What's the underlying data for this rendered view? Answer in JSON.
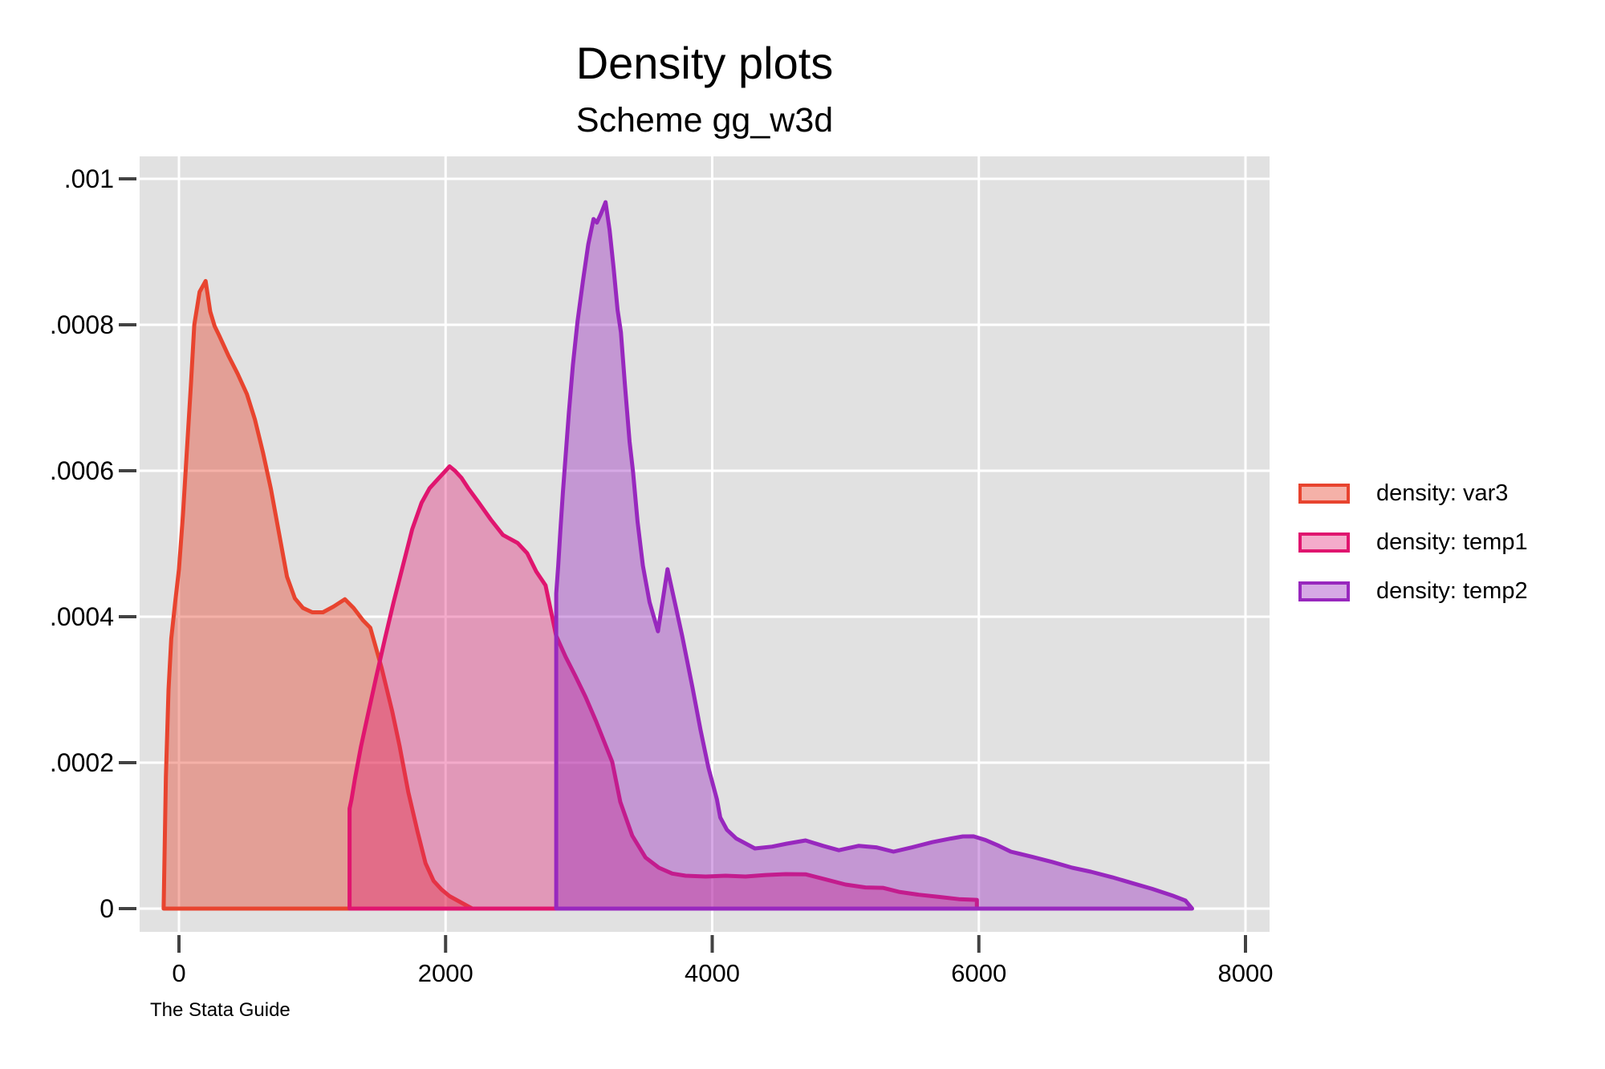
{
  "title": "Density plots",
  "subtitle": "Scheme gg_w3d",
  "footer": "The Stata Guide",
  "colors": {
    "plot_bg": "#e1e1e1",
    "gridline": "#ffffff",
    "tick": "#424242",
    "text": "#000000",
    "var3_stroke": "#e8442f",
    "var3_fill": "rgba(232,68,47,0.42)",
    "temp1_stroke": "#e0156f",
    "temp1_fill": "rgba(224,21,111,0.36)",
    "temp2_stroke": "#9828be",
    "temp2_fill": "rgba(152,40,190,0.40)"
  },
  "legend": {
    "items": [
      {
        "label": "density: var3",
        "series": "var3"
      },
      {
        "label": "density: temp1",
        "series": "temp1"
      },
      {
        "label": "density: temp2",
        "series": "temp2"
      }
    ]
  },
  "chart_data": {
    "type": "area",
    "title": "Density plots",
    "subtitle": "Scheme gg_w3d",
    "xlabel": "",
    "ylabel": "",
    "xlim": [
      -200,
      8400
    ],
    "ylim": [
      0,
      0.00104
    ],
    "grid": true,
    "legend_position": "right-outside",
    "x_ticks": {
      "values": [
        0,
        2000,
        4000,
        6000,
        8000
      ],
      "labels": [
        "0",
        "2000",
        "4000",
        "6000",
        "8000"
      ]
    },
    "y_ticks": {
      "values": [
        0,
        0.0002,
        0.0004,
        0.0006,
        0.0008,
        0.001
      ],
      "labels": [
        "0",
        ".0002",
        ".0004",
        ".0006",
        ".0008",
        ".001"
      ]
    },
    "series": [
      {
        "name": "density: var3",
        "key": "var3",
        "points": [
          [
            -115,
            0
          ],
          [
            -98,
            0.00018
          ],
          [
            -78,
            0.0003
          ],
          [
            -58,
            0.00037
          ],
          [
            -28,
            0.00042
          ],
          [
            0,
            0.000465
          ],
          [
            30,
            0.00054
          ],
          [
            60,
            0.00063
          ],
          [
            90,
            0.00072
          ],
          [
            115,
            0.0008
          ],
          [
            155,
            0.000845
          ],
          [
            200,
            0.00086
          ],
          [
            235,
            0.000818
          ],
          [
            268,
            0.000798
          ],
          [
            300,
            0.000786
          ],
          [
            370,
            0.000758
          ],
          [
            440,
            0.000733
          ],
          [
            510,
            0.000705
          ],
          [
            570,
            0.00067
          ],
          [
            630,
            0.000625
          ],
          [
            690,
            0.000575
          ],
          [
            750,
            0.000515
          ],
          [
            810,
            0.000455
          ],
          [
            870,
            0.000425
          ],
          [
            930,
            0.000412
          ],
          [
            1000,
            0.000406
          ],
          [
            1080,
            0.000406
          ],
          [
            1160,
            0.000414
          ],
          [
            1245,
            0.000424
          ],
          [
            1310,
            0.000412
          ],
          [
            1380,
            0.000395
          ],
          [
            1435,
            0.000385
          ],
          [
            1520,
            0.00033
          ],
          [
            1600,
            0.00027
          ],
          [
            1655,
            0.000223
          ],
          [
            1720,
            0.00016
          ],
          [
            1790,
            0.000105
          ],
          [
            1850,
            6.2e-05
          ],
          [
            1910,
            3.8e-05
          ],
          [
            1970,
            2.6e-05
          ],
          [
            2030,
            1.7e-05
          ],
          [
            2090,
            1.1e-05
          ],
          [
            2150,
            5e-06
          ],
          [
            2200,
            0
          ]
        ]
      },
      {
        "name": "density: temp1",
        "key": "temp1",
        "points": [
          [
            1280,
            0
          ],
          [
            1280,
            0.000137
          ],
          [
            1295,
            0.00015
          ],
          [
            1320,
            0.000178
          ],
          [
            1365,
            0.000222
          ],
          [
            1420,
            0.000268
          ],
          [
            1480,
            0.000318
          ],
          [
            1545,
            0.00037
          ],
          [
            1610,
            0.00042
          ],
          [
            1680,
            0.00047
          ],
          [
            1750,
            0.00052
          ],
          [
            1820,
            0.000556
          ],
          [
            1880,
            0.000576
          ],
          [
            1950,
            0.00059
          ],
          [
            2000,
            0.0006
          ],
          [
            2030,
            0.000606
          ],
          [
            2070,
            0.0006
          ],
          [
            2120,
            0.00059
          ],
          [
            2170,
            0.000576
          ],
          [
            2250,
            0.000556
          ],
          [
            2340,
            0.000533
          ],
          [
            2430,
            0.000512
          ],
          [
            2540,
            0.000501
          ],
          [
            2612,
            0.000487
          ],
          [
            2680,
            0.000462
          ],
          [
            2750,
            0.000443
          ],
          [
            2829,
            0.000374
          ],
          [
            2900,
            0.000345
          ],
          [
            2973,
            0.000319
          ],
          [
            3050,
            0.00029
          ],
          [
            3130,
            0.000256
          ],
          [
            3250,
            0.000201
          ],
          [
            3311,
            0.000146
          ],
          [
            3400,
            0.0001
          ],
          [
            3500,
            7e-05
          ],
          [
            3600,
            5.6e-05
          ],
          [
            3700,
            4.8e-05
          ],
          [
            3800,
            4.5e-05
          ],
          [
            3950,
            4.4e-05
          ],
          [
            4100,
            4.5e-05
          ],
          [
            4250,
            4.4e-05
          ],
          [
            4400,
            4.6e-05
          ],
          [
            4550,
            4.72e-05
          ],
          [
            4700,
            4.7e-05
          ],
          [
            4850,
            4e-05
          ],
          [
            5000,
            3.3e-05
          ],
          [
            5150,
            2.9e-05
          ],
          [
            5280,
            2.85e-05
          ],
          [
            5400,
            2.3e-05
          ],
          [
            5550,
            1.9e-05
          ],
          [
            5700,
            1.6e-05
          ],
          [
            5850,
            1.3e-05
          ],
          [
            5985,
            1.2e-05
          ],
          [
            5985,
            0
          ]
        ]
      },
      {
        "name": "density: temp2",
        "key": "temp2",
        "points": [
          [
            2830,
            0
          ],
          [
            2830,
            0.000432
          ],
          [
            2845,
            0.00047
          ],
          [
            2862,
            0.00052
          ],
          [
            2880,
            0.00057
          ],
          [
            2900,
            0.00062
          ],
          [
            2925,
            0.00068
          ],
          [
            2955,
            0.000745
          ],
          [
            2990,
            0.000805
          ],
          [
            3030,
            0.00086
          ],
          [
            3070,
            0.00091
          ],
          [
            3110,
            0.000945
          ],
          [
            3135,
            0.00094
          ],
          [
            3165,
            0.000952
          ],
          [
            3200,
            0.000968
          ],
          [
            3230,
            0.00093
          ],
          [
            3260,
            0.000878
          ],
          [
            3290,
            0.00082
          ],
          [
            3315,
            0.00079
          ],
          [
            3345,
            0.000718
          ],
          [
            3380,
            0.00064
          ],
          [
            3405,
            0.0006
          ],
          [
            3440,
            0.00053
          ],
          [
            3480,
            0.00047
          ],
          [
            3530,
            0.00042
          ],
          [
            3593,
            0.00038
          ],
          [
            3665,
            0.000465
          ],
          [
            3665,
            0.000465
          ],
          [
            3774,
            0.000374
          ],
          [
            3852,
            0.000303
          ],
          [
            3912,
            0.000245
          ],
          [
            3972,
            0.000193
          ],
          [
            4035,
            0.00015
          ],
          [
            4060,
            0.000125
          ],
          [
            4110,
            0.000108
          ],
          [
            4180,
            9.6e-05
          ],
          [
            4320,
            8.24e-05
          ],
          [
            4450,
            8.5e-05
          ],
          [
            4560,
            8.9e-05
          ],
          [
            4700,
            9.34e-05
          ],
          [
            4830,
            8.6e-05
          ],
          [
            4950,
            8e-05
          ],
          [
            5100,
            8.6e-05
          ],
          [
            5230,
            8.4e-05
          ],
          [
            5360,
            7.8e-05
          ],
          [
            5500,
            8.4e-05
          ],
          [
            5650,
            9.1e-05
          ],
          [
            5790,
            9.6e-05
          ],
          [
            5880,
            9.89e-05
          ],
          [
            5960,
            9.9e-05
          ],
          [
            6050,
            9.4e-05
          ],
          [
            6150,
            8.6e-05
          ],
          [
            6240,
            7.8e-05
          ],
          [
            6400,
            7.1e-05
          ],
          [
            6550,
            6.4e-05
          ],
          [
            6700,
            5.6e-05
          ],
          [
            6840,
            5.05e-05
          ],
          [
            7000,
            4.3e-05
          ],
          [
            7150,
            3.5e-05
          ],
          [
            7300,
            2.7e-05
          ],
          [
            7450,
            1.8e-05
          ],
          [
            7550,
            1.1e-05
          ],
          [
            7600,
            0
          ]
        ]
      }
    ]
  }
}
